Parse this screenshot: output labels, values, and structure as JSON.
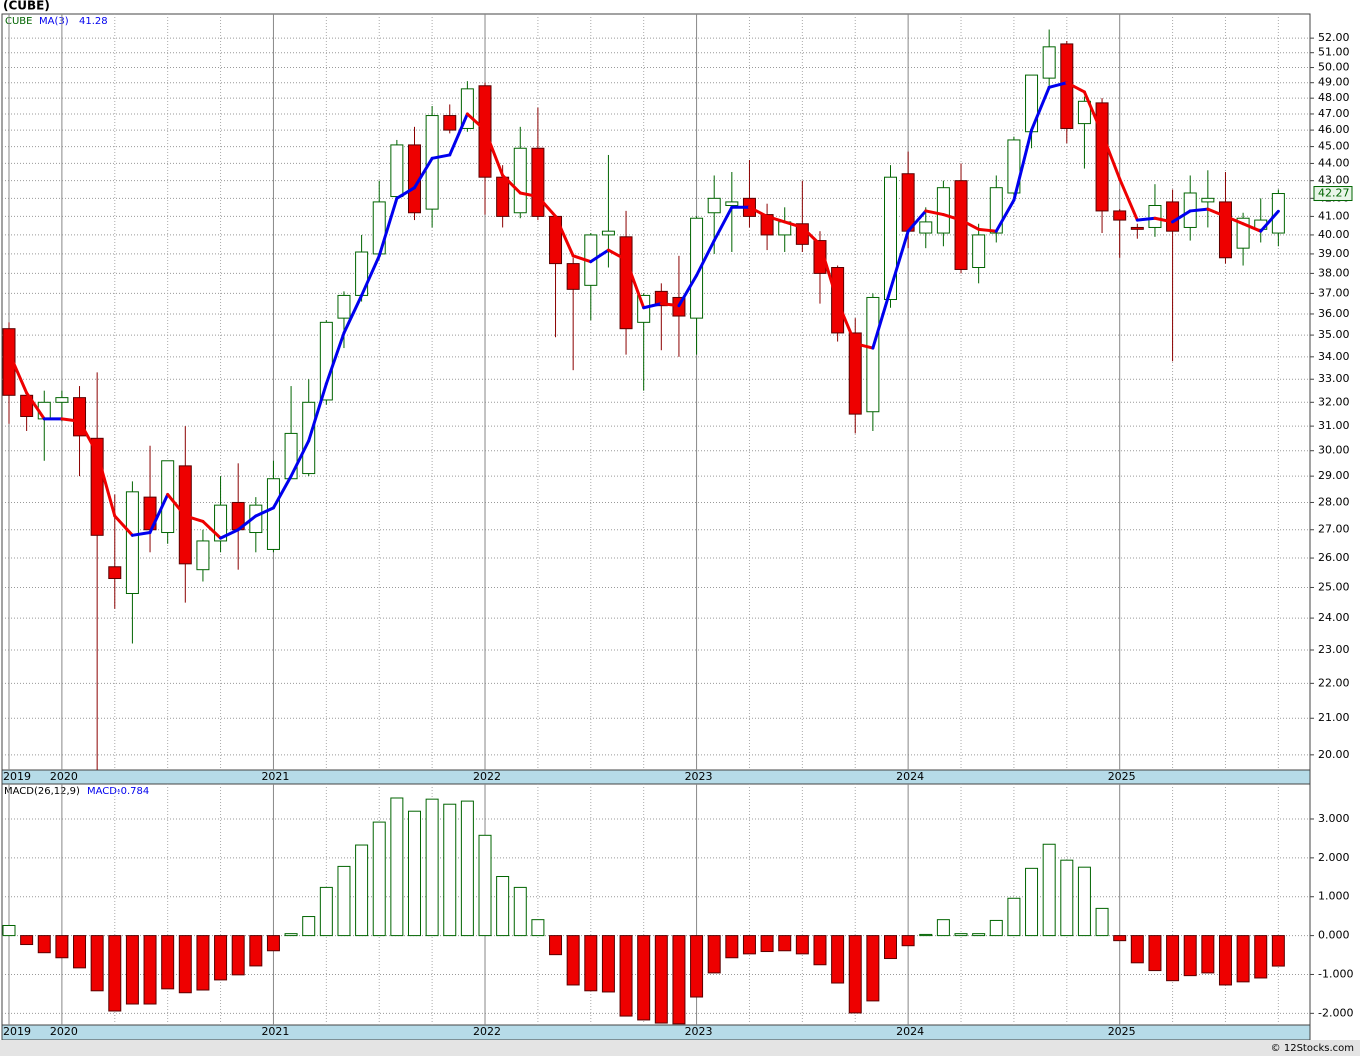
{
  "chart_data": [
    {
      "type": "candlestick",
      "title": "(CUBE)",
      "ticker": "CUBE",
      "categories": [
        "2019",
        null,
        null,
        "2020",
        null,
        null,
        null,
        null,
        null,
        null,
        null,
        null,
        null,
        null,
        null,
        "2021",
        null,
        null,
        null,
        null,
        null,
        null,
        null,
        null,
        null,
        null,
        null,
        "2022",
        null,
        null,
        null,
        null,
        null,
        null,
        null,
        null,
        null,
        null,
        null,
        "2023",
        null,
        null,
        null,
        null,
        null,
        null,
        null,
        null,
        null,
        null,
        null,
        "2024",
        null,
        null,
        null,
        null,
        null,
        null,
        null,
        null,
        null,
        null,
        null,
        "2025",
        null,
        null,
        null,
        null,
        null,
        null,
        null,
        null,
        null
      ],
      "open": [
        35.3,
        32.3,
        31.3,
        32.0,
        32.2,
        30.5,
        25.7,
        24.8,
        28.2,
        26.9,
        29.4,
        25.6,
        26.6,
        28.0,
        26.9,
        26.3,
        28.9,
        29.1,
        32.1,
        35.8,
        36.9,
        39.0,
        42.1,
        45.1,
        41.4,
        46.9,
        46.1,
        48.8,
        43.2,
        41.2,
        44.9,
        41.0,
        38.5,
        37.4,
        40.0,
        39.9,
        35.6,
        37.1,
        36.8,
        35.8,
        41.2,
        41.6,
        42.0,
        41.1,
        40.0,
        40.6,
        39.7,
        38.3,
        35.1,
        31.6,
        36.7,
        43.4,
        40.1,
        40.1,
        43.0,
        38.3,
        40.1,
        42.3,
        45.9,
        49.3,
        51.6,
        46.4,
        47.7,
        41.3,
        40.4,
        40.4,
        41.8,
        40.4,
        41.8,
        41.8,
        39.3,
        40.3,
        40.1
      ],
      "high": [
        35.6,
        32.4,
        32.5,
        32.5,
        32.7,
        33.3,
        28.3,
        28.8,
        30.2,
        29.6,
        31.0,
        27.0,
        29.0,
        29.5,
        28.2,
        29.6,
        32.7,
        33.0,
        35.7,
        37.1,
        40.0,
        43.0,
        45.4,
        46.2,
        47.5,
        47.6,
        49.1,
        49.0,
        43.9,
        46.2,
        47.4,
        41.0,
        38.8,
        40.1,
        44.5,
        41.3,
        37.0,
        37.5,
        38.9,
        41.0,
        43.3,
        43.5,
        44.2,
        41.7,
        41.5,
        43.0,
        40.2,
        38.4,
        35.8,
        37.0,
        43.9,
        44.7,
        41.5,
        43.0,
        44.0,
        40.6,
        43.3,
        45.6,
        49.5,
        52.6,
        51.8,
        48.1,
        48.0,
        41.4,
        40.6,
        42.8,
        42.5,
        43.3,
        43.6,
        43.5,
        41.2,
        42.0,
        42.5
      ],
      "low": [
        31.1,
        30.8,
        29.6,
        31.2,
        29.0,
        19.6,
        24.3,
        23.2,
        26.2,
        26.5,
        24.5,
        25.2,
        26.2,
        25.6,
        26.2,
        26.2,
        28.9,
        29.0,
        31.9,
        34.4,
        36.6,
        38.7,
        41.8,
        40.8,
        40.4,
        45.8,
        45.9,
        41.1,
        40.4,
        40.9,
        40.8,
        34.9,
        33.4,
        35.7,
        38.3,
        34.1,
        32.5,
        34.3,
        34.0,
        34.1,
        39.0,
        39.1,
        40.4,
        39.2,
        39.1,
        39.1,
        36.5,
        34.7,
        30.7,
        30.8,
        36.3,
        39.3,
        39.3,
        39.4,
        38.0,
        37.5,
        39.6,
        42.0,
        44.9,
        48.8,
        45.2,
        43.7,
        40.1,
        38.8,
        39.8,
        39.9,
        33.8,
        39.7,
        40.4,
        38.5,
        38.4,
        39.6,
        39.4
      ],
      "close": [
        32.3,
        31.4,
        32.0,
        32.2,
        30.6,
        26.8,
        25.3,
        28.4,
        27.0,
        29.6,
        25.8,
        26.6,
        27.9,
        27.0,
        27.9,
        28.9,
        30.7,
        32.0,
        35.6,
        36.9,
        39.1,
        41.8,
        45.1,
        41.2,
        46.9,
        46.0,
        48.6,
        43.2,
        41.0,
        44.9,
        41.0,
        38.5,
        37.2,
        40.0,
        40.2,
        35.3,
        36.9,
        36.4,
        35.9,
        40.9,
        42.0,
        41.8,
        41.0,
        40.0,
        40.7,
        39.5,
        38.0,
        35.1,
        31.5,
        36.8,
        43.2,
        40.2,
        40.7,
        42.6,
        38.2,
        40.0,
        42.6,
        45.4,
        49.5,
        51.4,
        46.1,
        47.8,
        41.3,
        40.8,
        40.3,
        41.6,
        40.2,
        42.3,
        42.0,
        38.8,
        40.9,
        40.8,
        42.27
      ],
      "up_color": "#006400",
      "down_color": "#ee0000",
      "ma": {
        "name": "MA(3)",
        "up_color": "#0000ee",
        "down_color": "#ee0000",
        "values": [
          34.2,
          32.4,
          31.3,
          31.3,
          31.2,
          29.9,
          27.5,
          26.8,
          26.9,
          28.3,
          27.5,
          27.3,
          26.7,
          27.0,
          27.5,
          27.8,
          29.0,
          30.4,
          32.8,
          35.1,
          36.9,
          38.9,
          42.0,
          42.6,
          44.3,
          44.5,
          47.0,
          46.0,
          43.3,
          42.3,
          42.1,
          41.0,
          38.9,
          38.6,
          39.2,
          38.7,
          36.3,
          36.5,
          36.4,
          37.9,
          39.7,
          41.5,
          41.5,
          41.0,
          40.7,
          40.4,
          39.5,
          36.6,
          34.6,
          34.4,
          37.2,
          40.2,
          41.3,
          41.1,
          40.8,
          40.3,
          40.2,
          41.9,
          46.0,
          48.7,
          49.0,
          48.4,
          45.8,
          43.1,
          40.8,
          40.9,
          40.7,
          41.3,
          41.4,
          41.0,
          40.6,
          40.2,
          41.28
        ]
      },
      "ylim": [
        19.6,
        53.7
      ],
      "log_scale": true,
      "grid": true,
      "yticks": [
        {
          "value": 20,
          "label": "20.00"
        },
        {
          "value": 21,
          "label": "21.00"
        },
        {
          "value": 22,
          "label": "22.00"
        },
        {
          "value": 23,
          "label": "23.00"
        },
        {
          "value": 24,
          "label": "24.00"
        },
        {
          "value": 25,
          "label": "25.00"
        },
        {
          "value": 26,
          "label": "26.00"
        },
        {
          "value": 27,
          "label": "27.00"
        },
        {
          "value": 28,
          "label": "28.00"
        },
        {
          "value": 29,
          "label": "29.00"
        },
        {
          "value": 30,
          "label": "30.00"
        },
        {
          "value": 31,
          "label": "31.00"
        },
        {
          "value": 32,
          "label": "32.00"
        },
        {
          "value": 33,
          "label": "33.00"
        },
        {
          "value": 34,
          "label": "34.00"
        },
        {
          "value": 35,
          "label": "35.00"
        },
        {
          "value": 36,
          "label": "36.00"
        },
        {
          "value": 37,
          "label": "37.00"
        },
        {
          "value": 38,
          "label": "38.00"
        },
        {
          "value": 39,
          "label": "39.00"
        },
        {
          "value": 40,
          "label": "40.00"
        },
        {
          "value": 41,
          "label": "41.00"
        },
        {
          "value": 42,
          "label": "42.00"
        },
        {
          "value": 43,
          "label": "43.00"
        },
        {
          "value": 44,
          "label": "44.00"
        },
        {
          "value": 45,
          "label": "45.00"
        },
        {
          "value": 46,
          "label": "46.00"
        },
        {
          "value": 47,
          "label": "47.00"
        },
        {
          "value": 48,
          "label": "48.00"
        },
        {
          "value": 49,
          "label": "49.00"
        },
        {
          "value": 50,
          "label": "50.00"
        },
        {
          "value": 51,
          "label": "51.00"
        },
        {
          "value": 52,
          "label": "52.00"
        }
      ]
    },
    {
      "type": "bar",
      "name": "MACD(26,12,9)",
      "value_name": "MACD:",
      "categories": [
        "2019",
        null,
        null,
        "2020",
        null,
        null,
        null,
        null,
        null,
        null,
        null,
        null,
        null,
        null,
        null,
        "2021",
        null,
        null,
        null,
        null,
        null,
        null,
        null,
        null,
        null,
        null,
        null,
        "2022",
        null,
        null,
        null,
        null,
        null,
        null,
        null,
        null,
        null,
        null,
        null,
        "2023",
        null,
        null,
        null,
        null,
        null,
        null,
        null,
        null,
        null,
        null,
        null,
        "2024",
        null,
        null,
        null,
        null,
        null,
        null,
        null,
        null,
        null,
        null,
        null,
        "2025",
        null,
        null,
        null,
        null,
        null,
        null,
        null,
        null,
        null
      ],
      "values": [
        0.26,
        -0.23,
        -0.44,
        -0.57,
        -0.83,
        -1.42,
        -1.94,
        -1.76,
        -1.76,
        -1.37,
        -1.47,
        -1.4,
        -1.14,
        -1.01,
        -0.78,
        -0.39,
        0.05,
        0.49,
        1.24,
        1.78,
        2.33,
        2.92,
        3.54,
        3.2,
        3.51,
        3.38,
        3.46,
        2.58,
        1.52,
        1.24,
        0.41,
        -0.49,
        -1.27,
        -1.42,
        -1.45,
        -2.07,
        -2.17,
        -2.25,
        -2.27,
        -1.58,
        -0.96,
        -0.57,
        -0.47,
        -0.41,
        -0.39,
        -0.47,
        -0.75,
        -1.22,
        -1.99,
        -1.68,
        -0.59,
        -0.26,
        0.03,
        0.41,
        0.05,
        0.05,
        0.39,
        0.96,
        1.73,
        2.35,
        1.94,
        1.76,
        0.7,
        -0.13,
        -0.7,
        -0.9,
        -1.16,
        -1.03,
        -0.96,
        -1.27,
        -1.19,
        -1.09,
        -0.784
      ],
      "pos_color": "#006400",
      "neg_color": "#ee0000",
      "ylim": [
        -2.3,
        3.9
      ],
      "grid": true,
      "yticks": [
        {
          "value": -2,
          "label": "-2.000"
        },
        {
          "value": -1,
          "label": "-1.000"
        },
        {
          "value": 0,
          "label": "0.000"
        },
        {
          "value": 1,
          "label": "1.000"
        },
        {
          "value": 2,
          "label": "2.000"
        },
        {
          "value": 3,
          "label": "3.000"
        }
      ]
    }
  ],
  "watermark": "© 12Stocks.com"
}
